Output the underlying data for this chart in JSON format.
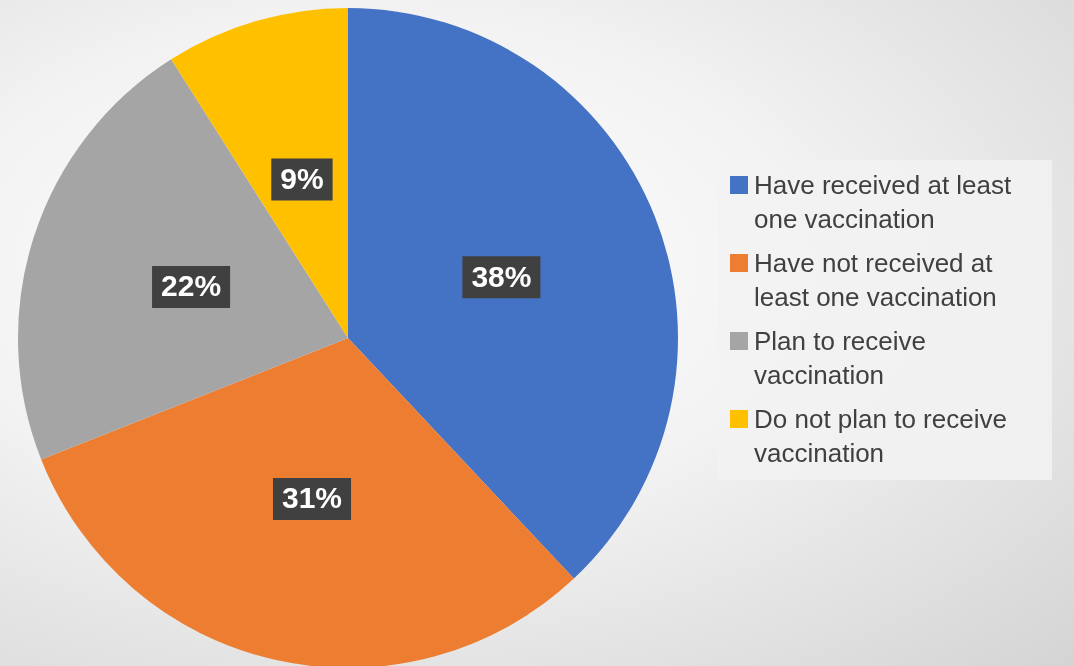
{
  "chart_data": {
    "type": "pie",
    "categories": [
      "Have received at least one vaccination",
      "Have not received at least one vaccination",
      "Plan to receive vaccination",
      "Do not plan to receive vaccination"
    ],
    "values": [
      38,
      31,
      22,
      9
    ],
    "colors": [
      "#4472c4",
      "#ed7d31",
      "#a5a5a5",
      "#ffc000"
    ],
    "value_labels": [
      "38%",
      "31%",
      "22%",
      "9%"
    ],
    "legend": "right"
  }
}
